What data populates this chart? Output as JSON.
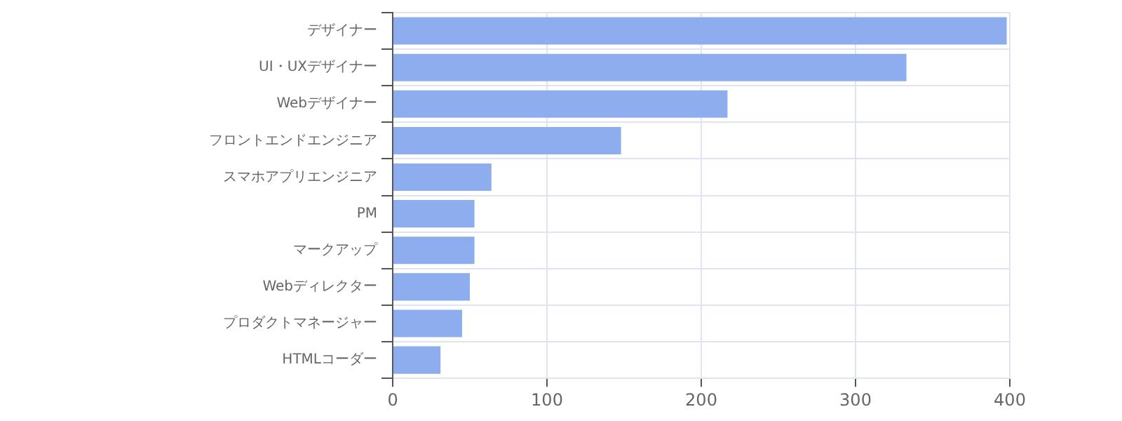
{
  "chart_data": {
    "type": "bar",
    "orientation": "horizontal",
    "categories": [
      "デザイナー",
      "UI・UXデザイナー",
      "Webデザイナー",
      "フロントエンドエンジニア",
      "スマホアプリエンジニア",
      "PM",
      "マークアップ",
      "Webディレクター",
      "プロダクトマネージャー",
      "HTMLコーダー"
    ],
    "values": [
      398,
      333,
      217,
      148,
      64,
      53,
      53,
      50,
      45,
      31
    ],
    "color": "#8eadee",
    "xlim": [
      0,
      400
    ],
    "xticks": [
      0,
      100,
      200,
      300,
      400
    ],
    "grid": true,
    "legend": false
  }
}
